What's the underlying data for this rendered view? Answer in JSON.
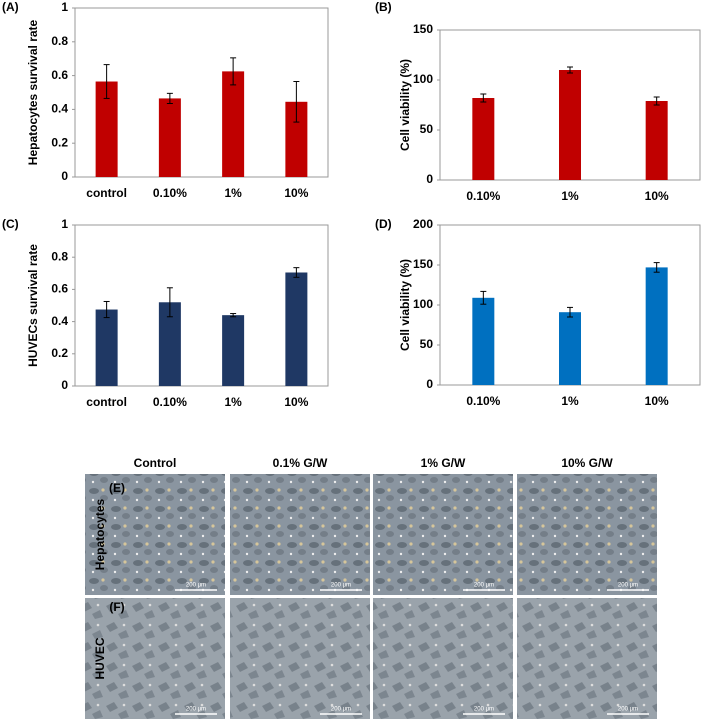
{
  "chart_data": [
    {
      "type": "bar",
      "label": "(A)",
      "y_label": "Hepatocytes survival rate",
      "categories": [
        "control",
        "0.10%",
        "1%",
        "10%"
      ],
      "values": [
        0.565,
        0.465,
        0.625,
        0.445
      ],
      "errors": [
        0.1,
        0.03,
        0.08,
        0.12
      ],
      "color": "#c00000",
      "ylim": [
        0,
        1
      ],
      "yticks": [
        0,
        0.2,
        0.4,
        0.6,
        0.8,
        1
      ]
    },
    {
      "type": "bar",
      "label": "(B)",
      "y_label": "Cell viability (%)",
      "categories": [
        "0.10%",
        "1%",
        "10%"
      ],
      "values": [
        82,
        110,
        79
      ],
      "errors": [
        4,
        3,
        4
      ],
      "color": "#c00000",
      "ylim": [
        0,
        150
      ],
      "yticks": [
        0,
        50,
        100,
        150
      ]
    },
    {
      "type": "bar",
      "label": "(C)",
      "y_label": "HUVECs survival rate",
      "categories": [
        "control",
        "0.10%",
        "1%",
        "10%"
      ],
      "values": [
        0.475,
        0.52,
        0.44,
        0.705
      ],
      "errors": [
        0.05,
        0.09,
        0.01,
        0.03
      ],
      "color": "#1f3864",
      "ylim": [
        0,
        1
      ],
      "yticks": [
        0,
        0.2,
        0.4,
        0.6,
        0.8,
        1
      ]
    },
    {
      "type": "bar",
      "label": "(D)",
      "y_label": "Cell viability (%)",
      "categories": [
        "0.10%",
        "1%",
        "10%"
      ],
      "values": [
        109,
        91,
        147
      ],
      "errors": [
        8,
        6,
        6
      ],
      "color": "#0070c0",
      "ylim": [
        0,
        200
      ],
      "yticks": [
        0,
        50,
        100,
        150,
        200
      ]
    }
  ],
  "micrographs": {
    "columns": [
      "Control",
      "0.1% G/W",
      "1% G/W",
      "10% G/W"
    ],
    "rows": [
      "Hepatocytes",
      "HUVEC"
    ],
    "panel_labels": [
      "(E)",
      "(F)"
    ],
    "scale_bar": "200 μm"
  }
}
